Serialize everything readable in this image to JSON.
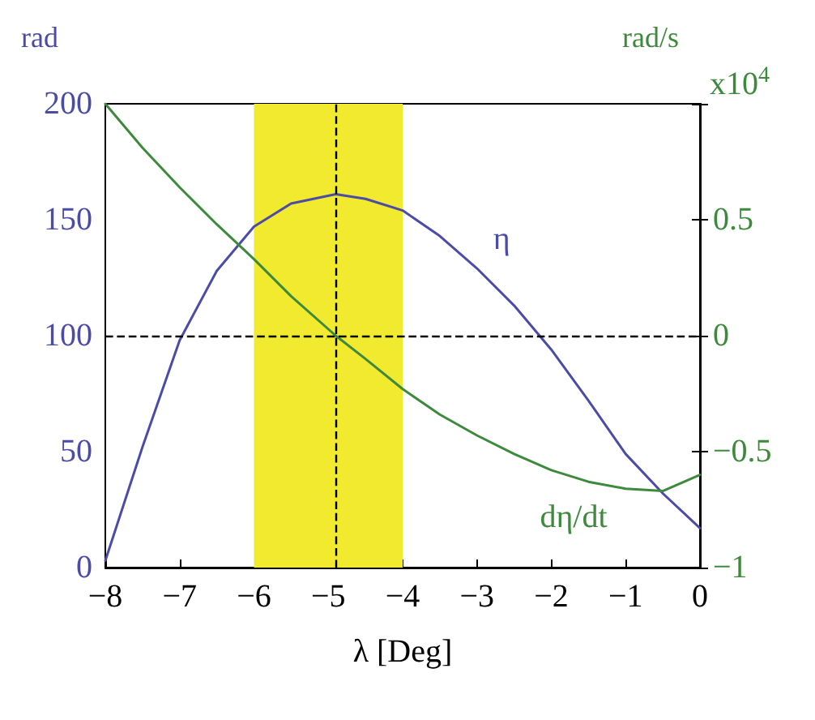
{
  "chart_data": {
    "type": "line",
    "xlabel": "λ [Deg]",
    "ylabel": "rad",
    "y2label": "rad/s",
    "x": [
      -8,
      -7.5,
      -7,
      -6.5,
      -6,
      -5.5,
      -4.9,
      -4.5,
      -4,
      -3.5,
      -3,
      -2.5,
      -2,
      -1.5,
      -1,
      -0.5,
      0
    ],
    "series": [
      {
        "name": "η",
        "color": "#4b4ba8",
        "values": [
          3,
          52,
          98,
          128,
          147,
          157,
          161,
          159,
          154,
          143,
          129,
          113,
          94,
          72,
          49,
          32,
          17
        ]
      },
      {
        "name": "dη/dt",
        "color": "#3d8a3d",
        "axis": "y2",
        "values": [
          1,
          0.81,
          0.64,
          0.48,
          0.33,
          0.17,
          0,
          -0.1,
          -0.23,
          -0.34,
          -0.43,
          -0.51,
          -0.58,
          -0.63,
          -0.66,
          -0.67,
          -0.6
        ]
      }
    ],
    "xlim": [
      -8,
      0
    ],
    "xticks": [
      {
        "value": -8,
        "label": "−8"
      },
      {
        "value": -7,
        "label": "−7"
      },
      {
        "value": -6,
        "label": "−6"
      },
      {
        "value": -5,
        "label": "−5"
      },
      {
        "value": -4,
        "label": "−4"
      },
      {
        "value": -3,
        "label": "−3"
      },
      {
        "value": -2,
        "label": "−2"
      },
      {
        "value": -1,
        "label": "−1"
      },
      0
    ],
    "ylim": [
      0,
      200
    ],
    "yticks": [
      0,
      50,
      100,
      150,
      200
    ],
    "y2lim": [
      -1,
      1
    ],
    "y2ticks": [
      {
        "value": -1,
        "label": "−1"
      },
      {
        "value": -0.5,
        "label": "−0.5"
      },
      0,
      0.5,
      {
        "value": 1,
        "label": null
      }
    ],
    "annotations": [
      "x10$^{4}$"
    ],
    "ref_lines": [
      {
        "axis": "x",
        "value": -4.9,
        "label": null,
        "color": "#000000",
        "line_style": "dashed"
      },
      {
        "axis": "y",
        "value": 100,
        "label": null,
        "color": "#000000",
        "line_style": "dashed"
      }
    ],
    "bands": [
      {
        "axis": "x",
        "from": -6,
        "to": -4,
        "label": null,
        "color": "#f2ea2e"
      }
    ],
    "grid": false,
    "legend": false,
    "marker": "none",
    "line_style": "solid"
  }
}
